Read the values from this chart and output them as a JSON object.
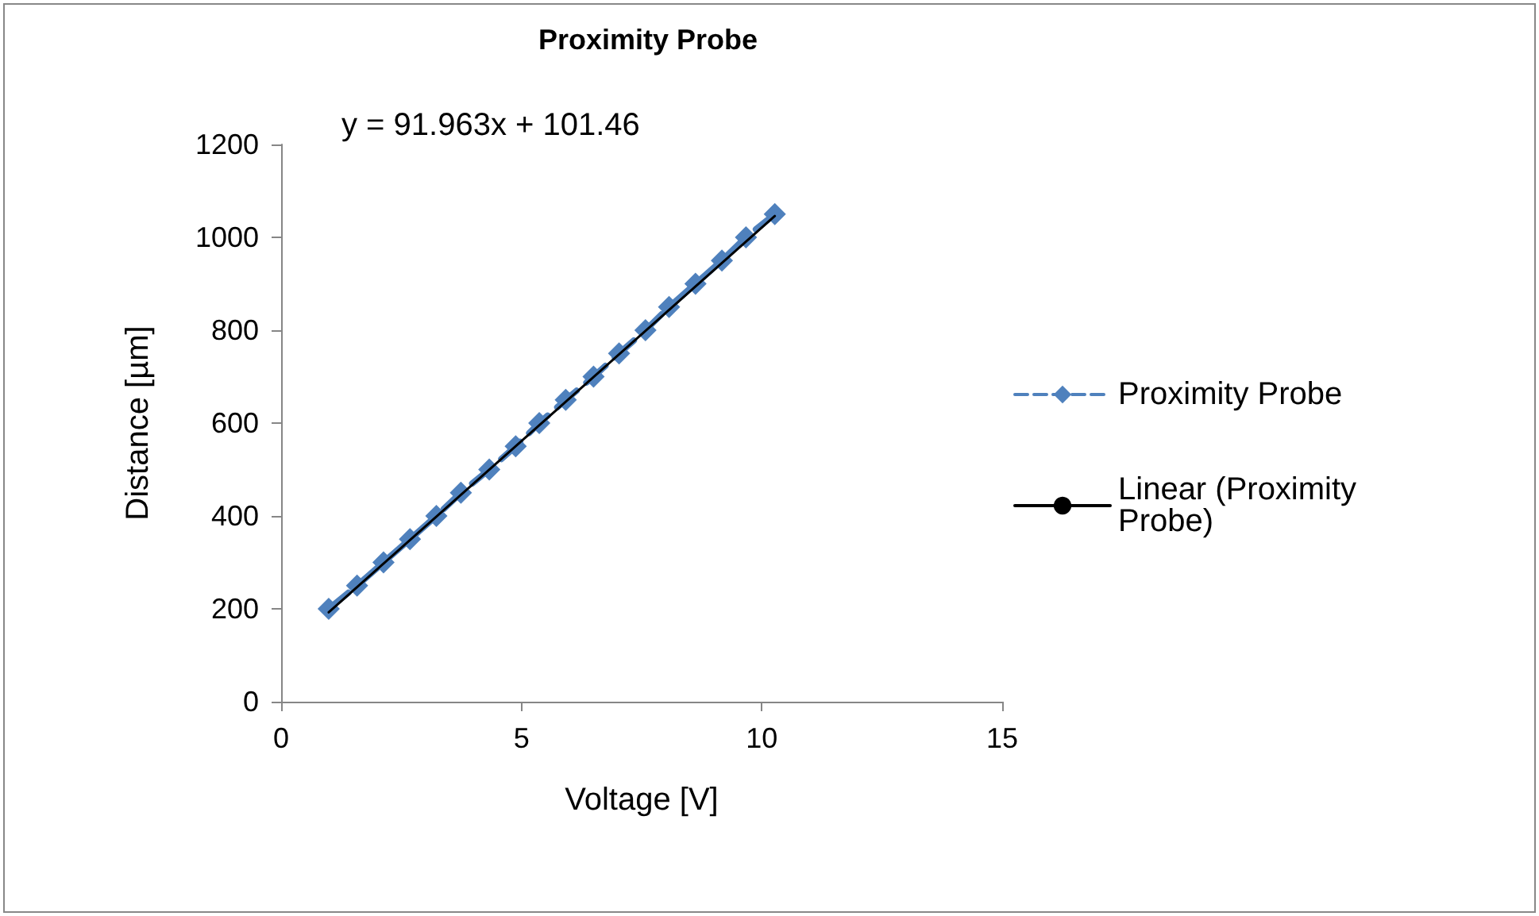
{
  "chart_data": {
    "type": "line",
    "title": "Proximity Probe",
    "xlabel": "Voltage [V]",
    "ylabel": "Distance [µm]",
    "annotations": [
      "y = 91.963x + 101.46"
    ],
    "x": [
      0.99,
      1.58,
      2.13,
      2.68,
      3.23,
      3.74,
      4.33,
      4.88,
      5.37,
      5.92,
      6.5,
      7.03,
      7.58,
      8.07,
      8.62,
      9.17,
      9.67,
      10.27
    ],
    "series": [
      {
        "name": "Proximity Probe",
        "color": "#4f81bd",
        "marker": "diamond",
        "line_style": "dashed",
        "values": [
          200,
          250,
          300,
          350,
          400,
          450,
          500,
          550,
          600,
          650,
          700,
          750,
          800,
          850,
          900,
          950,
          1000,
          1050
        ]
      },
      {
        "name": "Linear (Proximity Probe)",
        "type": "line",
        "color": "#000000",
        "marker": "none",
        "line_style": "solid",
        "x": [
          0.99,
          10.27
        ],
        "values": [
          192.5,
          1045.9
        ]
      }
    ],
    "xlim": [
      0,
      15
    ],
    "xticks": [
      0,
      5,
      10,
      15
    ],
    "ylim": [
      0,
      1200
    ],
    "yticks": [
      0,
      200,
      400,
      600,
      800,
      1000,
      1200
    ],
    "grid": false,
    "legend": "right"
  }
}
